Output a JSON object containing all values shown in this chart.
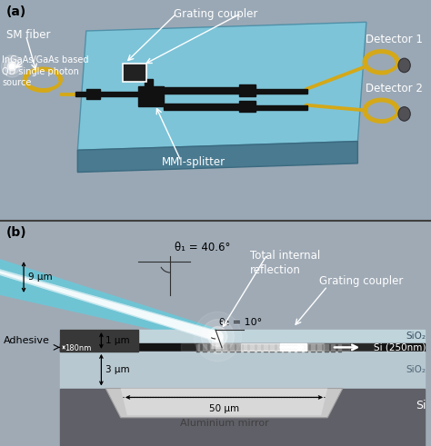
{
  "panel_a_bg": "#9aa8b5",
  "panel_b_bg": "#9faab5",
  "chip_color": "#7dc4d8",
  "chip_dark": "#4a7a90",
  "chip_edge": "#3a6a80",
  "waveguide_color": "#111111",
  "fiber_yellow": "#d4a818",
  "fiber_gray": "#909090",
  "white": "#ffffff",
  "label_a": "(a)",
  "label_b": "(b)",
  "text_sm_fiber": "SM fiber",
  "text_ingaas": "InGaAs/GaAs based\nQD single photon\nsource",
  "text_grating": "Grating coupler",
  "text_mmi": "MMI-splitter",
  "text_det1": "Detector 1",
  "text_det2": "Detector 2",
  "text_theta1": "θ₁ = 40.6°",
  "text_theta2": "θ₂ = 10°",
  "text_tir": "Total internal\nreflection",
  "text_grating_b": "Grating coupler",
  "text_9um": "9 μm",
  "text_1um": "1 μm",
  "text_3um": "3 μm",
  "text_180nm": "180nm",
  "text_50um": "50 μm",
  "text_adhesive": "Adhesive",
  "text_sio2_top": "SiO₂",
  "text_si": "Si (250nm)",
  "text_sio2_bot": "SiO₂",
  "text_si_sub": "Si",
  "text_al_mirror": "Aluminium mirror",
  "taper_color": "#6ac8d8",
  "fiber_beam_color": "#c0e8f0"
}
